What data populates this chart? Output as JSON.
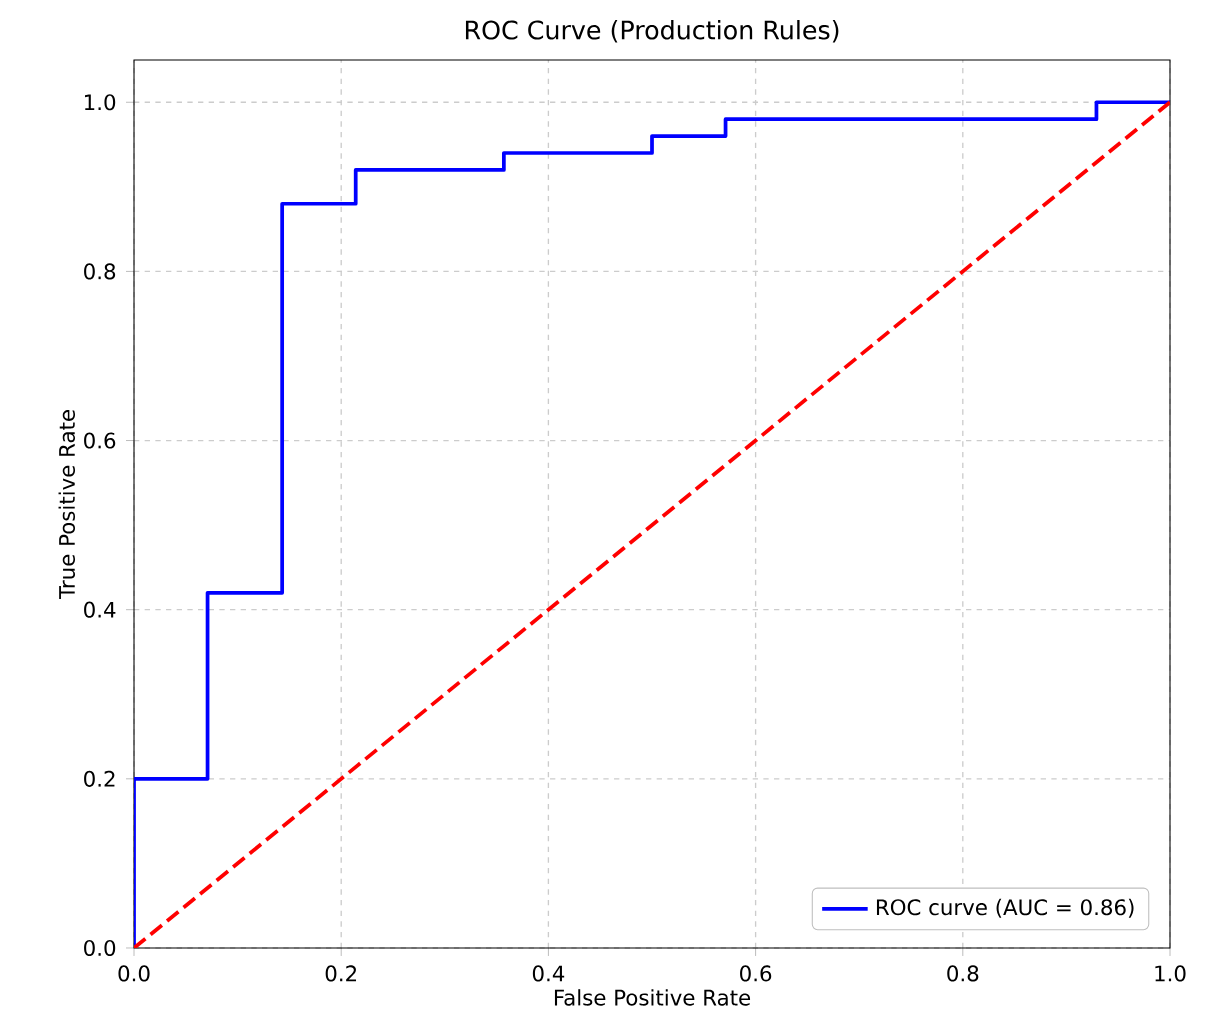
{
  "chart_data": {
    "type": "line",
    "title": "ROC Curve (Production Rules)",
    "xlabel": "False Positive Rate",
    "ylabel": "True Positive Rate",
    "series": [
      {
        "name": "ROC curve (AUC = 0.86)",
        "color": "#0000ff",
        "line_style": "solid",
        "x": [
          0,
          0,
          0.071,
          0.071,
          0.143,
          0.143,
          0.214,
          0.214,
          0.357,
          0.357,
          0.5,
          0.5,
          0.571,
          0.571,
          0.929,
          0.929,
          1
        ],
        "values": [
          0,
          0.2,
          0.2,
          0.42,
          0.42,
          0.88,
          0.88,
          0.92,
          0.92,
          0.94,
          0.94,
          0.96,
          0.96,
          0.98,
          0.98,
          1,
          1
        ]
      },
      {
        "color": "#ff0000",
        "line_style": "dashed",
        "x": [
          0,
          1
        ],
        "values": [
          0,
          1
        ]
      }
    ],
    "xlim": [
      0,
      1
    ],
    "ylim": [
      0,
      1.05
    ],
    "xticks": [
      {
        "value": 0,
        "label": "0.0"
      },
      {
        "value": 0.2,
        "label": "0.2"
      },
      {
        "value": 0.4,
        "label": "0.4"
      },
      {
        "value": 0.6,
        "label": "0.6"
      },
      {
        "value": 0.8,
        "label": "0.8"
      },
      {
        "value": 1,
        "label": "1.0"
      }
    ],
    "yticks": [
      {
        "value": 0,
        "label": "0.0"
      },
      {
        "value": 0.2,
        "label": "0.2"
      },
      {
        "value": 0.4,
        "label": "0.4"
      },
      {
        "value": 0.6,
        "label": "0.6"
      },
      {
        "value": 0.8,
        "label": "0.8"
      },
      {
        "value": 1,
        "label": "1.0"
      }
    ],
    "grid": true,
    "legend": "bottom right",
    "marker": "none"
  }
}
